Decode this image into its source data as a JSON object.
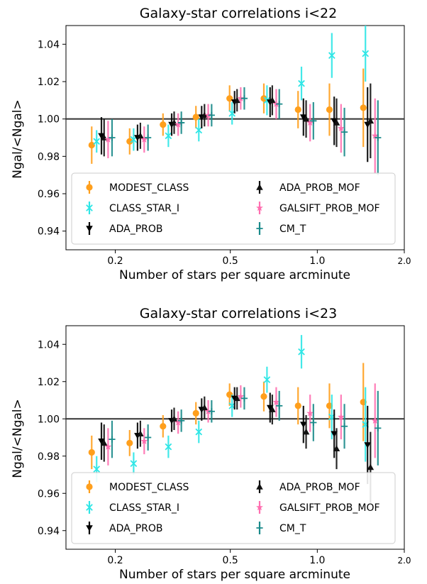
{
  "colors": {
    "MODEST_CLASS": "#ff9f1c",
    "CLASS_STAR_I": "#2ee6e6",
    "ADA_PROB": "#000000",
    "ADA_PROB_MOF": "#111111",
    "GALSIFT_PROB_MOF": "#ff6fb0",
    "CM_T": "#1a8a8a",
    "reference_line": "#333333"
  },
  "chart_data": [
    {
      "type": "scatter",
      "title": "Galaxy-star correlations i<22",
      "xlabel": "Number of stars per square arcminute",
      "ylabel": "Ngal/<Ngal>",
      "xscale": "log",
      "xlim": [
        0.135,
        2.0
      ],
      "ylim": [
        0.93,
        1.05
      ],
      "xticks": [
        {
          "v": 0.2,
          "t": "0.2"
        },
        {
          "v": 0.5,
          "t": "0.5"
        },
        {
          "v": 1.0,
          "t": "1.0"
        },
        {
          "v": 2.0,
          "t": "2.0"
        }
      ],
      "yticks": [
        {
          "v": 0.94,
          "t": "0.94"
        },
        {
          "v": 0.96,
          "t": "0.96"
        },
        {
          "v": 0.98,
          "t": "0.98"
        },
        {
          "v": 1.0,
          "t": "1.00"
        },
        {
          "v": 1.02,
          "t": "1.02"
        },
        {
          "v": 1.04,
          "t": "1.04"
        }
      ],
      "reference_line": 1.0,
      "grid": false,
      "legend": "bottom-left, 2 columns",
      "series": [
        {
          "name": "MODEST_CLASS",
          "marker": "circle",
          "color": "#ff9f1c",
          "x": [
            0.17,
            0.23,
            0.3,
            0.39,
            0.51,
            0.67,
            0.88,
            1.13,
            1.48
          ],
          "y": [
            0.986,
            0.988,
            0.997,
            1.001,
            1.011,
            1.011,
            1.005,
            1.005,
            1.006
          ],
          "err": [
            0.01,
            0.007,
            0.006,
            0.006,
            0.007,
            0.008,
            0.01,
            0.014,
            0.021
          ]
        },
        {
          "name": "CLASS_STAR_I",
          "marker": "x",
          "color": "#2ee6e6",
          "x": [
            0.175,
            0.235,
            0.31,
            0.395,
            0.515,
            0.68,
            0.895,
            1.14,
            1.49
          ],
          "y": [
            0.988,
            0.989,
            0.991,
            0.994,
            1.003,
            1.01,
            1.019,
            1.034,
            1.035
          ],
          "err": [
            0.006,
            0.006,
            0.006,
            0.006,
            0.006,
            0.008,
            0.009,
            0.012,
            0.015
          ]
        },
        {
          "name": "ADA_PROB",
          "marker": "triangle_down",
          "color": "#000000",
          "x": [
            0.18,
            0.24,
            0.315,
            0.4,
            0.52,
            0.69,
            0.9,
            1.15,
            1.5
          ],
          "y": [
            0.991,
            0.99,
            0.997,
            1.001,
            1.009,
            1.009,
            1.001,
            0.999,
            0.997
          ],
          "err": [
            0.01,
            0.007,
            0.006,
            0.006,
            0.006,
            0.008,
            0.01,
            0.013,
            0.02
          ]
        },
        {
          "name": "ADA_PROB_MOF",
          "marker": "triangle_up",
          "color": "#111111",
          "x": [
            0.182,
            0.243,
            0.318,
            0.405,
            0.525,
            0.695,
            0.91,
            1.16,
            1.52
          ],
          "y": [
            0.99,
            0.991,
            0.998,
            1.002,
            1.01,
            1.01,
            1.0,
            0.998,
            0.999
          ],
          "err": [
            0.01,
            0.007,
            0.006,
            0.006,
            0.006,
            0.008,
            0.01,
            0.013,
            0.02
          ]
        },
        {
          "name": "GALSIFT_PROB_MOF",
          "marker": "star",
          "color": "#ff6fb0",
          "x": [
            0.186,
            0.248,
            0.325,
            0.413,
            0.535,
            0.71,
            0.93,
            1.19,
            1.56
          ],
          "y": [
            0.989,
            0.989,
            0.997,
            1.002,
            1.011,
            1.008,
            0.998,
            0.995,
            0.991
          ],
          "err": [
            0.01,
            0.007,
            0.006,
            0.006,
            0.006,
            0.008,
            0.01,
            0.013,
            0.02
          ]
        },
        {
          "name": "CM_T",
          "marker": "plus",
          "color": "#1a8a8a",
          "x": [
            0.19,
            0.253,
            0.33,
            0.42,
            0.545,
            0.72,
            0.945,
            1.21,
            1.58
          ],
          "y": [
            0.99,
            0.99,
            0.998,
            1.002,
            1.011,
            1.008,
            0.999,
            0.993,
            0.99
          ],
          "err": [
            0.01,
            0.007,
            0.006,
            0.006,
            0.006,
            0.008,
            0.01,
            0.013,
            0.02
          ]
        }
      ]
    },
    {
      "type": "scatter",
      "title": "Galaxy-star correlations i<23",
      "xlabel": "Number of stars per square arcminute",
      "ylabel": "Ngal/<Ngal>",
      "xscale": "log",
      "xlim": [
        0.135,
        2.0
      ],
      "ylim": [
        0.93,
        1.05
      ],
      "xticks": [
        {
          "v": 0.2,
          "t": "0.2"
        },
        {
          "v": 0.5,
          "t": "0.5"
        },
        {
          "v": 1.0,
          "t": "1.0"
        },
        {
          "v": 2.0,
          "t": "2.0"
        }
      ],
      "yticks": [
        {
          "v": 0.94,
          "t": "0.94"
        },
        {
          "v": 0.96,
          "t": "0.96"
        },
        {
          "v": 0.98,
          "t": "0.98"
        },
        {
          "v": 1.0,
          "t": "1.00"
        },
        {
          "v": 1.02,
          "t": "1.02"
        },
        {
          "v": 1.04,
          "t": "1.04"
        }
      ],
      "reference_line": 1.0,
      "grid": false,
      "legend": "bottom-left, 2 columns",
      "series": [
        {
          "name": "MODEST_CLASS",
          "marker": "circle",
          "color": "#ff9f1c",
          "x": [
            0.17,
            0.23,
            0.3,
            0.39,
            0.51,
            0.67,
            0.88,
            1.13,
            1.48
          ],
          "y": [
            0.982,
            0.987,
            0.996,
            1.003,
            1.013,
            1.012,
            1.007,
            1.007,
            1.009
          ],
          "err": [
            0.009,
            0.007,
            0.006,
            0.006,
            0.006,
            0.008,
            0.01,
            0.012,
            0.021
          ]
        },
        {
          "name": "CLASS_STAR_I",
          "marker": "x",
          "color": "#2ee6e6",
          "x": [
            0.175,
            0.235,
            0.31,
            0.395,
            0.515,
            0.68,
            0.895,
            1.14,
            1.49
          ],
          "y": [
            0.973,
            0.976,
            0.985,
            0.993,
            1.007,
            1.021,
            1.036,
            1.001,
            0.997
          ],
          "err": [
            0.007,
            0.006,
            0.006,
            0.006,
            0.006,
            0.007,
            0.009,
            0.012,
            0.02
          ]
        },
        {
          "name": "ADA_PROB",
          "marker": "triangle_down",
          "color": "#000000",
          "x": [
            0.18,
            0.24,
            0.315,
            0.4,
            0.52,
            0.69,
            0.9,
            1.15,
            1.5
          ],
          "y": [
            0.988,
            0.991,
            0.999,
            1.005,
            1.011,
            1.006,
            0.997,
            0.992,
            0.986
          ],
          "err": [
            0.01,
            0.007,
            0.006,
            0.006,
            0.006,
            0.008,
            0.01,
            0.013,
            0.021
          ]
        },
        {
          "name": "ADA_PROB_MOF",
          "marker": "triangle_up",
          "color": "#111111",
          "x": [
            0.182,
            0.243,
            0.318,
            0.405,
            0.525,
            0.695,
            0.91,
            1.16,
            1.52
          ],
          "y": [
            0.987,
            0.992,
            1.0,
            1.006,
            1.011,
            1.005,
            0.993,
            0.984,
            0.974
          ],
          "err": [
            0.01,
            0.007,
            0.006,
            0.006,
            0.006,
            0.008,
            0.009,
            0.011,
            0.019
          ]
        },
        {
          "name": "GALSIFT_PROB_MOF",
          "marker": "star",
          "color": "#ff6fb0",
          "x": [
            0.186,
            0.248,
            0.325,
            0.413,
            0.535,
            0.71,
            0.93,
            1.19,
            1.56
          ],
          "y": [
            0.985,
            0.988,
            0.998,
            1.004,
            1.012,
            1.009,
            1.003,
            1.001,
            0.999
          ],
          "err": [
            0.01,
            0.007,
            0.006,
            0.006,
            0.006,
            0.008,
            0.01,
            0.012,
            0.02
          ]
        },
        {
          "name": "CM_T",
          "marker": "plus",
          "color": "#1a8a8a",
          "x": [
            0.19,
            0.253,
            0.33,
            0.42,
            0.545,
            0.72,
            0.945,
            1.21,
            1.58
          ],
          "y": [
            0.989,
            0.99,
            0.999,
            1.004,
            1.011,
            1.007,
            0.998,
            0.996,
            0.995
          ],
          "err": [
            0.01,
            0.007,
            0.006,
            0.006,
            0.006,
            0.008,
            0.01,
            0.012,
            0.02
          ]
        }
      ]
    }
  ]
}
